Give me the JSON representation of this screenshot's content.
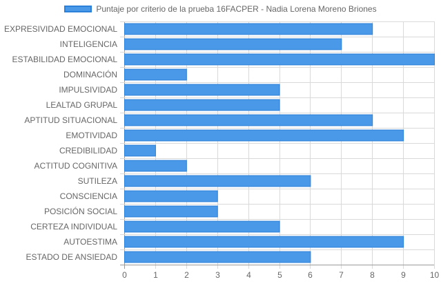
{
  "chart_data": {
    "type": "bar",
    "orientation": "horizontal",
    "categories": [
      "EXPRESIVIDAD EMOCIONAL",
      "INTELIGENCIA",
      "ESTABILIDAD EMOCIONAL",
      "DOMINACIÓN",
      "IMPULSIVIDAD",
      "LEALTAD GRUPAL",
      "APTITUD SITUACIONAL",
      "EMOTIVIDAD",
      "CREDIBILIDAD",
      "ACTITUD COGNITIVA",
      "SUTILEZA",
      "CONSCIENCIA",
      "POSICIÓN SOCIAL",
      "CERTEZA INDIVIDUAL",
      "AUTOESTIMA",
      "ESTADO DE ANSIEDAD"
    ],
    "series": [
      {
        "name": "Puntaje por criterio de la prueba 16FACPER - Nadia Lorena Moreno Briones",
        "values": [
          8,
          7,
          10,
          2,
          5,
          5,
          8,
          9,
          1,
          2,
          6,
          3,
          3,
          5,
          9,
          6
        ],
        "color": "#4a98e8",
        "border_color": "#2b80d9"
      }
    ],
    "xlim": [
      0,
      10
    ],
    "x_ticks": [
      "0",
      "1",
      "2",
      "3",
      "4",
      "5",
      "6",
      "7",
      "8",
      "9",
      "10"
    ],
    "grid": true,
    "legend_position": "top"
  }
}
